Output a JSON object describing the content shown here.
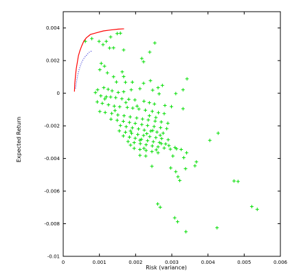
{
  "chart_data": {
    "type": "scatter",
    "xlabel": "Risk (variance)",
    "ylabel": "Expected Return",
    "xlim": [
      0,
      0.006
    ],
    "ylim": [
      -0.01,
      0.005
    ],
    "x_ticks": [
      0,
      0.001,
      0.002,
      0.003,
      0.004,
      0.005,
      0.006
    ],
    "x_tick_labels": [
      "0",
      "0.001",
      "0.002",
      "0.003",
      "0.004",
      "0.005",
      "0.006"
    ],
    "y_ticks": [
      -0.01,
      -0.008,
      -0.006,
      -0.004,
      -0.002,
      0,
      0.002,
      0.004
    ],
    "y_tick_labels": [
      "-0.01",
      "-0.008",
      "-0.006",
      "-0.004",
      "-0.002",
      "0",
      "0.002",
      "0.004"
    ],
    "grid": false,
    "colors": {
      "scatter": "#00dd00",
      "frontier": "#ff0000",
      "frontier_dotted": "#0000cc",
      "axes": "#000000"
    },
    "series": [
      {
        "type": "scatter",
        "marker": "+",
        "points": [
          [
            0.00061,
            0.00318
          ],
          [
            0.00079,
            0.00335
          ],
          [
            0.00099,
            0.00318
          ],
          [
            0.00119,
            0.00318
          ],
          [
            0.00131,
            0.00345
          ],
          [
            0.00149,
            0.00366
          ],
          [
            0.00158,
            0.00368
          ],
          [
            0.0011,
            0.00298
          ],
          [
            0.00128,
            0.00277
          ],
          [
            0.00139,
            0.00278
          ],
          [
            0.00167,
            0.00265
          ],
          [
            0.00217,
            0.00213
          ],
          [
            0.00239,
            0.00252
          ],
          [
            0.00253,
            0.00308
          ],
          [
            0.00222,
            0.00193
          ],
          [
            0.00105,
            0.00183
          ],
          [
            0.00114,
            0.00166
          ],
          [
            0.00101,
            0.00144
          ],
          [
            0.00122,
            0.00125
          ],
          [
            0.00139,
            0.00101
          ],
          [
            0.00163,
            0.00131
          ],
          [
            0.00167,
            0.00102
          ],
          [
            0.00147,
            0.00069
          ],
          [
            0.00172,
            0.00067
          ],
          [
            0.00191,
            0.00068
          ],
          [
            0.00222,
            0.00061
          ],
          [
            0.00241,
            0.00077
          ],
          [
            0.00262,
            0.00034
          ],
          [
            0.00274,
            0.00048
          ],
          [
            0.00342,
            0.00088
          ],
          [
            0.00331,
            0.00021
          ],
          [
            0.00311,
            -2e-05
          ],
          [
            0.00265,
            -4e-05
          ],
          [
            0.00247,
            0.00019
          ],
          [
            0.00212,
            0.00028
          ],
          [
            0.00188,
            0.00021
          ],
          [
            0.00167,
            9e-05
          ],
          [
            0.00152,
            5e-05
          ],
          [
            0.00135,
            0.00015
          ],
          [
            0.00124,
            0.00024
          ],
          [
            0.00112,
            0.00034
          ],
          [
            0.00095,
            0.00021
          ],
          [
            0.00089,
            4e-05
          ],
          [
            0.00104,
            -0.00016
          ],
          [
            0.00119,
            -0.00022
          ],
          [
            0.00131,
            -0.00023
          ],
          [
            0.00145,
            -0.00027
          ],
          [
            0.00162,
            -0.00034
          ],
          [
            0.00181,
            -0.00037
          ],
          [
            0.00198,
            -0.00041
          ],
          [
            0.00223,
            -0.00049
          ],
          [
            0.00238,
            -0.00058
          ],
          [
            0.00252,
            -0.00066
          ],
          [
            0.00281,
            -0.00075
          ],
          [
            0.00299,
            -0.00082
          ],
          [
            0.00331,
            -0.00095
          ],
          [
            0.00094,
            -0.00053
          ],
          [
            0.00108,
            -0.00062
          ],
          [
            0.00125,
            -0.00071
          ],
          [
            0.00141,
            -0.00079
          ],
          [
            0.00156,
            -0.00083
          ],
          [
            0.00177,
            -0.00087
          ],
          [
            0.00192,
            -0.00091
          ],
          [
            0.00209,
            -0.00097
          ],
          [
            0.00227,
            -0.00104
          ],
          [
            0.00246,
            -0.00111
          ],
          [
            0.00263,
            -0.00119
          ],
          [
            0.00279,
            -0.00125
          ],
          [
            0.00101,
            -0.00112
          ],
          [
            0.00116,
            -0.00118
          ],
          [
            0.00134,
            -0.00124
          ],
          [
            0.00151,
            -0.00133
          ],
          [
            0.00168,
            -0.00138
          ],
          [
            0.00185,
            -0.00145
          ],
          [
            0.00203,
            -0.00152
          ],
          [
            0.00219,
            -0.00158
          ],
          [
            0.00235,
            -0.00164
          ],
          [
            0.00254,
            -0.00171
          ],
          [
            0.00271,
            -0.00176
          ],
          [
            0.00289,
            -0.00184
          ],
          [
            0.00132,
            -0.00159
          ],
          [
            0.00149,
            -0.00166
          ],
          [
            0.00166,
            -0.00172
          ],
          [
            0.00183,
            -0.00179
          ],
          [
            0.00199,
            -0.00185
          ],
          [
            0.00217,
            -0.00192
          ],
          [
            0.00233,
            -0.00198
          ],
          [
            0.00251,
            -0.00204
          ],
          [
            0.00269,
            -0.00211
          ],
          [
            0.00286,
            -0.00217
          ],
          [
            0.00158,
            -0.00198
          ],
          [
            0.00174,
            -0.00205
          ],
          [
            0.00191,
            -0.00212
          ],
          [
            0.00208,
            -0.00219
          ],
          [
            0.00224,
            -0.00226
          ],
          [
            0.00242,
            -0.00232
          ],
          [
            0.00259,
            -0.00238
          ],
          [
            0.00276,
            -0.00245
          ],
          [
            0.00155,
            -0.00231
          ],
          [
            0.00172,
            -0.00239
          ],
          [
            0.00189,
            -0.00246
          ],
          [
            0.00206,
            -0.00253
          ],
          [
            0.00222,
            -0.00259
          ],
          [
            0.00239,
            -0.00266
          ],
          [
            0.00256,
            -0.00272
          ],
          [
            0.00272,
            -0.00278
          ],
          [
            0.0029,
            -0.00285
          ],
          [
            0.00166,
            -0.00262
          ],
          [
            0.00183,
            -0.00269
          ],
          [
            0.00199,
            -0.00276
          ],
          [
            0.00216,
            -0.00283
          ],
          [
            0.00233,
            -0.00291
          ],
          [
            0.00249,
            -0.00297
          ],
          [
            0.00266,
            -0.00302
          ],
          [
            0.00283,
            -0.00311
          ],
          [
            0.00179,
            -0.00296
          ],
          [
            0.00196,
            -0.00303
          ],
          [
            0.00213,
            -0.00309
          ],
          [
            0.00229,
            -0.00316
          ],
          [
            0.00246,
            -0.00323
          ],
          [
            0.00262,
            -0.00329
          ],
          [
            0.00279,
            -0.00336
          ],
          [
            0.00296,
            -0.00343
          ],
          [
            0.00313,
            -0.00341
          ],
          [
            0.00196,
            -0.00338
          ],
          [
            0.00212,
            -0.00345
          ],
          [
            0.00229,
            -0.00351
          ],
          [
            0.00245,
            -0.00358
          ],
          [
            0.00262,
            -0.00365
          ],
          [
            0.00309,
            -0.00333
          ],
          [
            0.00326,
            -0.00345
          ],
          [
            0.00341,
            -0.00365
          ],
          [
            0.00212,
            -0.00381
          ],
          [
            0.00228,
            -0.00385
          ],
          [
            0.00303,
            -0.00385
          ],
          [
            0.00333,
            -0.00395
          ],
          [
            0.00368,
            -0.00421
          ],
          [
            0.00245,
            -0.00448
          ],
          [
            0.00297,
            -0.00458
          ],
          [
            0.00311,
            -0.00481
          ],
          [
            0.00338,
            -0.00463
          ],
          [
            0.00364,
            -0.00445
          ],
          [
            0.00317,
            -0.00512
          ],
          [
            0.00322,
            -0.00535
          ],
          [
            0.00405,
            -0.00289
          ],
          [
            0.00428,
            -0.00245
          ],
          [
            0.00472,
            -0.00538
          ],
          [
            0.00483,
            -0.00541
          ],
          [
            0.00521,
            -0.00695
          ],
          [
            0.00536,
            -0.00712
          ],
          [
            0.00308,
            -0.00764
          ],
          [
            0.00316,
            -0.00788
          ],
          [
            0.00261,
            -0.00679
          ],
          [
            0.00268,
            -0.00699
          ],
          [
            0.00339,
            -0.00849
          ],
          [
            0.00425,
            -0.00825
          ],
          [
            0.00115,
            -0.00035
          ],
          [
            0.00173,
            -0.00057
          ],
          [
            0.00204,
            -0.00079
          ],
          [
            0.00238,
            -0.00138
          ],
          [
            0.00256,
            -0.00149
          ],
          [
            0.00143,
            -0.00106
          ],
          [
            0.00186,
            -0.00232
          ],
          [
            0.00231,
            -0.00248
          ],
          [
            0.00247,
            -0.00229
          ],
          [
            0.00268,
            -0.00258
          ],
          [
            0.00271,
            -0.00309
          ],
          [
            0.00292,
            -0.00321
          ],
          [
            0.00186,
            -0.00318
          ],
          [
            0.00223,
            -0.00338
          ],
          [
            0.00212,
            -0.00288
          ],
          [
            0.00257,
            -0.00347
          ]
        ]
      },
      {
        "type": "line",
        "style": "solid",
        "points": [
          [
            0.00031,
            0.0001
          ],
          [
            0.00032,
            0.0006
          ],
          [
            0.00034,
            0.0011
          ],
          [
            0.00036,
            0.0015
          ],
          [
            0.00039,
            0.0019
          ],
          [
            0.00042,
            0.0023
          ],
          [
            0.00046,
            0.0026
          ],
          [
            0.00051,
            0.0029
          ],
          [
            0.00057,
            0.0032
          ],
          [
            0.00064,
            0.0034
          ],
          [
            0.00075,
            0.0036
          ],
          [
            0.00091,
            0.0037
          ],
          [
            0.00111,
            0.00382
          ],
          [
            0.00132,
            0.00388
          ],
          [
            0.00152,
            0.00393
          ],
          [
            0.00168,
            0.00395
          ]
        ]
      },
      {
        "type": "line",
        "style": "dotted",
        "points": [
          [
            0.00034,
            0.0003
          ],
          [
            0.00036,
            0.0006
          ],
          [
            0.00039,
            0.001
          ],
          [
            0.00042,
            0.0013
          ],
          [
            0.00046,
            0.0016
          ],
          [
            0.00051,
            0.0019
          ],
          [
            0.00056,
            0.0021
          ],
          [
            0.00063,
            0.0023
          ],
          [
            0.00071,
            0.0025
          ],
          [
            0.00079,
            0.0026
          ]
        ]
      }
    ]
  }
}
